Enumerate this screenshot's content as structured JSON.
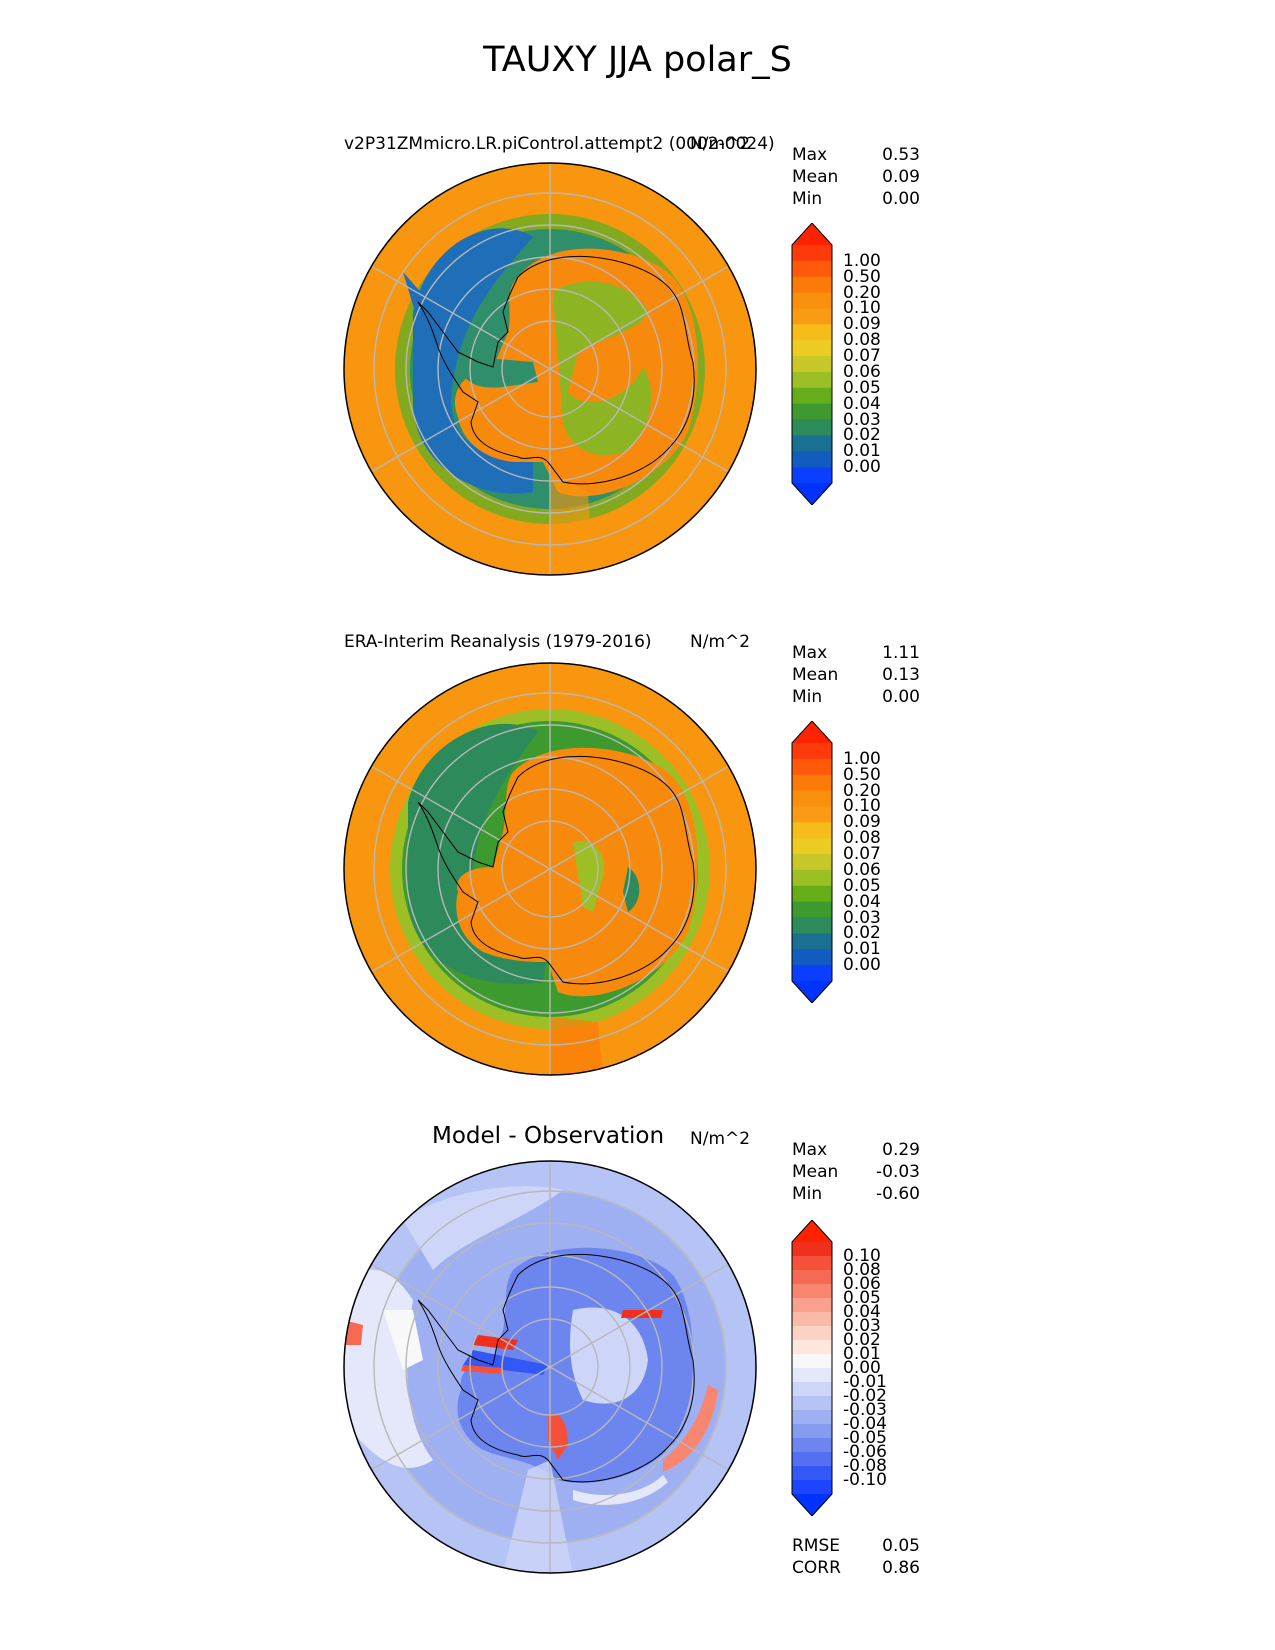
{
  "figure_title": "TAUXY JJA polar_S",
  "panels": [
    {
      "title": "v2P31ZMmicro.LR.piControl.attempt2 (0002-0024)",
      "units": "N/m^2",
      "stats": [
        {
          "label": "Max",
          "value": "0.53"
        },
        {
          "label": "Mean",
          "value": "0.09"
        },
        {
          "label": "Min",
          "value": "0.00"
        }
      ],
      "colorbar": {
        "labels": [
          "1.00",
          "0.50",
          "0.20",
          "0.10",
          "0.09",
          "0.08",
          "0.07",
          "0.06",
          "0.05",
          "0.04",
          "0.03",
          "0.02",
          "0.01",
          "0.00"
        ],
        "colors": [
          "#ff3a0a",
          "#ff5a0a",
          "#fb7a08",
          "#f8900e",
          "#f99c14",
          "#f6bd1a",
          "#eccb22",
          "#c8c72a",
          "#9dbf26",
          "#66ad1a",
          "#3d9a2e",
          "#2d8a5a",
          "#1a7092",
          "#125cc0",
          "#0b3fff"
        ],
        "top_cap": "#ff2200",
        "bottom_cap": "#0033ff"
      }
    },
    {
      "title": "ERA-Interim Reanalysis (1979-2016)",
      "units": "N/m^2",
      "stats": [
        {
          "label": "Max",
          "value": "1.11"
        },
        {
          "label": "Mean",
          "value": "0.13"
        },
        {
          "label": "Min",
          "value": "0.00"
        }
      ],
      "colorbar": {
        "labels": [
          "1.00",
          "0.50",
          "0.20",
          "0.10",
          "0.09",
          "0.08",
          "0.07",
          "0.06",
          "0.05",
          "0.04",
          "0.03",
          "0.02",
          "0.01",
          "0.00"
        ],
        "colors": [
          "#ff3a0a",
          "#ff5a0a",
          "#fb7a08",
          "#f8900e",
          "#f99c14",
          "#f6bd1a",
          "#eccb22",
          "#c8c72a",
          "#9dbf26",
          "#66ad1a",
          "#3d9a2e",
          "#2d8a5a",
          "#1a7092",
          "#125cc0",
          "#0b3fff"
        ],
        "top_cap": "#ff2200",
        "bottom_cap": "#0033ff"
      }
    },
    {
      "title": "Model - Observation",
      "units": "N/m^2",
      "stats": [
        {
          "label": "Max",
          "value": "0.29"
        },
        {
          "label": "Mean",
          "value": "-0.03"
        },
        {
          "label": "Min",
          "value": "-0.60"
        }
      ],
      "extra_stats": [
        {
          "label": "RMSE",
          "value": "0.05"
        },
        {
          "label": "CORR",
          "value": "0.86"
        }
      ],
      "colorbar": {
        "labels": [
          "0.10",
          "0.08",
          "0.06",
          "0.05",
          "0.04",
          "0.03",
          "0.02",
          "0.01",
          "0.00",
          "-0.01",
          "-0.02",
          "-0.03",
          "-0.04",
          "-0.05",
          "-0.06",
          "-0.08",
          "-0.10"
        ],
        "colors": [
          "#f0301c",
          "#f4503a",
          "#f66a54",
          "#f8866e",
          "#faa08c",
          "#fbbaa8",
          "#fcd2c4",
          "#fde6dc",
          "#f8f8f8",
          "#e4e8fa",
          "#cdd6f8",
          "#b6c4f5",
          "#9eb0f2",
          "#879cf0",
          "#6d86ef",
          "#5270f0",
          "#3458f5",
          "#1d44ff"
        ],
        "top_cap": "#ff2200",
        "bottom_cap": "#0033ff"
      }
    }
  ],
  "chart_data": [
    {
      "type": "heatmap",
      "title": "v2P31ZMmicro.LR.piControl.attempt2 (0002-0024)",
      "variable": "TAUXY",
      "season": "JJA",
      "region": "polar_S",
      "units": "N/m^2",
      "max": 0.53,
      "mean": 0.09,
      "min": 0.0,
      "levels": [
        0.0,
        0.01,
        0.02,
        0.03,
        0.04,
        0.05,
        0.06,
        0.07,
        0.08,
        0.09,
        0.1,
        0.2,
        0.5,
        1.0
      ]
    },
    {
      "type": "heatmap",
      "title": "ERA-Interim Reanalysis (1979-2016)",
      "units": "N/m^2",
      "max": 1.11,
      "mean": 0.13,
      "min": 0.0,
      "levels": [
        0.0,
        0.01,
        0.02,
        0.03,
        0.04,
        0.05,
        0.06,
        0.07,
        0.08,
        0.09,
        0.1,
        0.2,
        0.5,
        1.0
      ]
    },
    {
      "type": "heatmap",
      "title": "Model - Observation",
      "units": "N/m^2",
      "max": 0.29,
      "mean": -0.03,
      "min": -0.6,
      "rmse": 0.05,
      "corr": 0.86,
      "levels": [
        -0.1,
        -0.08,
        -0.06,
        -0.05,
        -0.04,
        -0.03,
        -0.02,
        -0.01,
        0.0,
        0.01,
        0.02,
        0.03,
        0.04,
        0.05,
        0.06,
        0.08,
        0.1
      ]
    }
  ]
}
